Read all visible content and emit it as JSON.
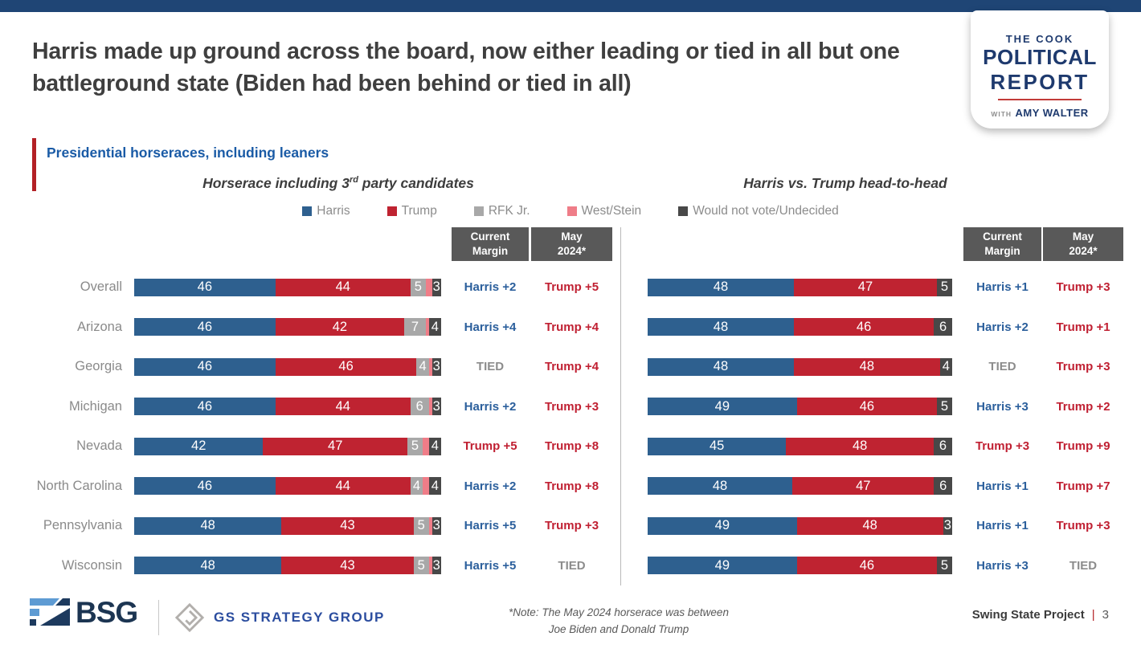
{
  "header": {
    "title": "Harris made up ground across the board, now either leading or tied in all but one battleground state (Biden had been behind or tied in all)"
  },
  "logo": {
    "the_cook": "THE COOK",
    "political": "POLITICAL",
    "report": "REPORT",
    "with_text": "WITH",
    "author": "AMY WALTER"
  },
  "section": {
    "title": "Presidential horseraces, including leaners"
  },
  "margin_columns": {
    "current_line1": "Current",
    "current_line2": "Margin",
    "may_line1": "May",
    "may_line2": "2024*"
  },
  "chart_data": {
    "type": "bar",
    "subtype": "horizontal-stacked",
    "categories": [
      "Overall",
      "Arizona",
      "Georgia",
      "Michigan",
      "Nevada",
      "North Carolina",
      "Pennsylvania",
      "Wisconsin"
    ],
    "legend": [
      {
        "key": "harris",
        "label": "Harris"
      },
      {
        "key": "trump",
        "label": "Trump"
      },
      {
        "key": "rfk",
        "label": "RFK Jr."
      },
      {
        "key": "west_stein",
        "label": "West/Stein"
      },
      {
        "key": "undecided",
        "label": "Would not vote/Undecided"
      }
    ],
    "colors": {
      "harris": "#2e608f",
      "trump": "#bf2331",
      "rfk": "#a8a8a8",
      "west_stein": "#ef7d88",
      "undecided": "#484848",
      "harris_margin": "#2b5f9c",
      "trump_margin": "#c02032",
      "tied_margin": "#8c8c8c"
    },
    "label_threshold": 3,
    "left_chart": {
      "title": "Horserace including 3rd party candidates",
      "title_parts": {
        "pre": "Horserace including 3",
        "sup": "rd",
        "post": " party candidates"
      },
      "series_keys": [
        "harris",
        "trump",
        "rfk",
        "west_stein",
        "undecided"
      ],
      "rows": [
        {
          "state": "Overall",
          "harris": 46,
          "trump": 44,
          "rfk": 5,
          "west_stein": 2,
          "undecided": 3,
          "current_margin": "Harris +2",
          "may_margin": "Trump +5"
        },
        {
          "state": "Arizona",
          "harris": 46,
          "trump": 42,
          "rfk": 7,
          "west_stein": 1,
          "undecided": 4,
          "current_margin": "Harris +4",
          "may_margin": "Trump +4"
        },
        {
          "state": "Georgia",
          "harris": 46,
          "trump": 46,
          "rfk": 4,
          "west_stein": 1,
          "undecided": 3,
          "current_margin": "TIED",
          "may_margin": "Trump +4"
        },
        {
          "state": "Michigan",
          "harris": 46,
          "trump": 44,
          "rfk": 6,
          "west_stein": 1,
          "undecided": 3,
          "current_margin": "Harris +2",
          "may_margin": "Trump +3"
        },
        {
          "state": "Nevada",
          "harris": 42,
          "trump": 47,
          "rfk": 5,
          "west_stein": 2,
          "undecided": 4,
          "current_margin": "Trump +5",
          "may_margin": "Trump +8"
        },
        {
          "state": "North Carolina",
          "harris": 46,
          "trump": 44,
          "rfk": 4,
          "west_stein": 2,
          "undecided": 4,
          "current_margin": "Harris +2",
          "may_margin": "Trump +8"
        },
        {
          "state": "Pennsylvania",
          "harris": 48,
          "trump": 43,
          "rfk": 5,
          "west_stein": 1,
          "undecided": 3,
          "current_margin": "Harris +5",
          "may_margin": "Trump +3"
        },
        {
          "state": "Wisconsin",
          "harris": 48,
          "trump": 43,
          "rfk": 5,
          "west_stein": 1,
          "undecided": 3,
          "current_margin": "Harris +5",
          "may_margin": "TIED"
        }
      ]
    },
    "right_chart": {
      "title": "Harris vs. Trump head-to-head",
      "series_keys": [
        "harris",
        "trump",
        "undecided"
      ],
      "rows": [
        {
          "state": "Overall",
          "harris": 48,
          "trump": 47,
          "undecided": 5,
          "current_margin": "Harris +1",
          "may_margin": "Trump +3"
        },
        {
          "state": "Arizona",
          "harris": 48,
          "trump": 46,
          "undecided": 6,
          "current_margin": "Harris +2",
          "may_margin": "Trump +1"
        },
        {
          "state": "Georgia",
          "harris": 48,
          "trump": 48,
          "undecided": 4,
          "current_margin": "TIED",
          "may_margin": "Trump +3"
        },
        {
          "state": "Michigan",
          "harris": 49,
          "trump": 46,
          "undecided": 5,
          "current_margin": "Harris +3",
          "may_margin": "Trump +2"
        },
        {
          "state": "Nevada",
          "harris": 45,
          "trump": 48,
          "undecided": 6,
          "current_margin": "Trump +3",
          "may_margin": "Trump +9"
        },
        {
          "state": "North Carolina",
          "harris": 48,
          "trump": 47,
          "undecided": 6,
          "current_margin": "Harris +1",
          "may_margin": "Trump +7"
        },
        {
          "state": "Pennsylvania",
          "harris": 49,
          "trump": 48,
          "undecided": 3,
          "current_margin": "Harris +1",
          "may_margin": "Trump +3"
        },
        {
          "state": "Wisconsin",
          "harris": 49,
          "trump": 46,
          "undecided": 5,
          "current_margin": "Harris +3",
          "may_margin": "TIED"
        }
      ]
    }
  },
  "footer": {
    "bsg_text": "BSG",
    "gs_text": "GS STRATEGY GROUP",
    "note_line1": "*Note: The May 2024 horserace was between",
    "note_line2": "Joe Biden and Donald Trump",
    "project": "Swing State Project",
    "page_divider": "|",
    "page": "3"
  }
}
